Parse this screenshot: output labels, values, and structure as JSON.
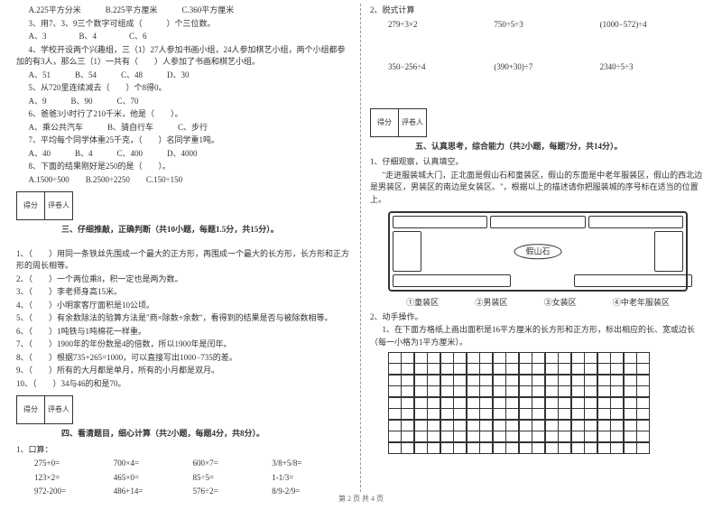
{
  "left": {
    "q2_opts": "A.225平方分米　　　B.225平方厘米　　　C.360平方厘米",
    "q3": "3、用7、3、9三个数字可组成（　　　）个三位数。",
    "q3_opts": "A、3　　　　B、4　　　　C、6",
    "q4": "4、学校开设两个兴趣组，三（1）27人参加书画小组，24人参加棋艺小组，两个小组都参加的有3人，那么三（1）一共有（　　）人参加了书画和棋艺小组。",
    "q4_opts": "A、51　　　B、54　　　C、48　　　D、30",
    "q5": "5、从720里连续减去（　　）个8得0。",
    "q5_opts": "A、9　　　B、90　　　C、70",
    "q6": "6、爸爸3小时行了210千米，他是（　　）。",
    "q6_opts": "A、乘公共汽车　　　B、骑自行车　　　C、步行",
    "q7": "7、平均每个同学体重25千克，（　　）名同学重1吨。",
    "q7_opts": "A、40　　　B、4　　　C、400　　　D、4000",
    "q8": "8、下面的结果刚好是250的是（　　）。",
    "q8_opts": "A.1500÷500　　B.2500÷2250　　C.150÷150",
    "score_a": "得分",
    "score_b": "评卷人",
    "sec3": "三、仔细推敲，正确判断（共10小题，每题1.5分，共15分）。",
    "j1": "1、（　　）用同一条铁丝先围成一个最大的正方形，再围成一个最大的长方形，长方形和正方形的周长相等。",
    "j2": "2、（　　）一个两位乘8，积一定也是两为数。",
    "j3": "3、（　　）李老师身高15米。",
    "j4": "4、（　　）小明家客厅面积是10公顷。",
    "j5": "5、（　　）有余数除法的验算方法是\"商×除数+余数\"，看得到的结果是否与被除数相等。",
    "j6": "6、（　　）1吨铁与1吨棉花一样重。",
    "j7": "7、（　　）1900年的年份数是4的倍数，所以1900年是闰年。",
    "j8": "8、（　　）根据735+265=1000，可以直接写出1000−735的差。",
    "j9": "9、（　　）所有的大月都是单月，所有的小月都是双月。",
    "j10": "10、（　　）34与46的和是70。",
    "sec4": "四、看清题目，细心计算（共2小题，每题4分，共8分）。",
    "c1": "1、口算：",
    "r1a": "275+0=",
    "r1b": "700×4=",
    "r1c": "600×7=",
    "r1d": "3/8+5/8=",
    "r2a": "123×2=",
    "r2b": "465×0=",
    "r2c": "85÷5=",
    "r2d": "1-1/3=",
    "r3a": "972-200=",
    "r3b": "486+14=",
    "r3c": "576÷2=",
    "r3d": "8/9-2/9="
  },
  "right": {
    "c2": "2、脱式计算",
    "e1a": "279÷3×2",
    "e1b": "750÷5÷3",
    "e1c": "(1000−572)÷4",
    "e2a": "350−256÷4",
    "e2b": "(390+30)÷7",
    "e2c": "2340÷5÷3",
    "score_a": "得分",
    "score_b": "评卷人",
    "sec5": "五、认真思考，综合能力（共2小题，每题7分，共14分）。",
    "p1": "1、仔细观察，认真填空。",
    "p1t": "\"走进服装城大门，正北面是假山石和童装区，假山的东面是中老年服装区，假山的西北边是男装区，男装区的南边是女装区。\"，根据以上的描述请你把服装城的序号标在适当的位置上。",
    "center": "假山石",
    "lab1": "①童装区",
    "lab2": "②男装区",
    "lab3": "③女装区",
    "lab4": "④中老年服装区",
    "p2": "2、动手操作。",
    "p2t": "1、在下面方格纸上画出面积是16平方厘米的长方形和正方形，标出相应的长、宽或边长（每一小格为1平方厘米）。"
  },
  "footer": "第 2 页 共 4 页"
}
